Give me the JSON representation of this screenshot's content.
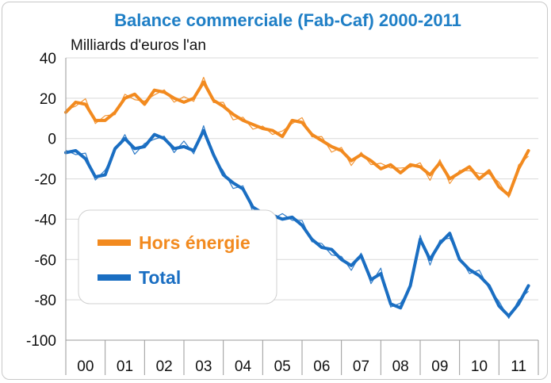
{
  "chart_data": {
    "type": "line",
    "title": "Balance commerciale (Fab-Caf) 2000-2011",
    "unit_label": "Milliards d'euros l'an",
    "x_tick_labels": [
      "00",
      "01",
      "02",
      "03",
      "04",
      "05",
      "06",
      "07",
      "08",
      "09",
      "10",
      "11"
    ],
    "y_ticks": [
      40,
      20,
      0,
      -20,
      -40,
      -60,
      -80,
      -100
    ],
    "ylim": [
      -100,
      40
    ],
    "xlim": [
      2000.0,
      2012.0
    ],
    "legend_position": "lower-left",
    "series": [
      {
        "name": "Hors énergie",
        "color": "#f28a1f",
        "x": [
          2000.0,
          2000.25,
          2000.5,
          2000.75,
          2001.0,
          2001.25,
          2001.5,
          2001.75,
          2002.0,
          2002.25,
          2002.5,
          2002.75,
          2003.0,
          2003.25,
          2003.5,
          2003.75,
          2004.0,
          2004.25,
          2004.5,
          2004.75,
          2005.0,
          2005.25,
          2005.5,
          2005.75,
          2006.0,
          2006.25,
          2006.5,
          2006.75,
          2007.0,
          2007.25,
          2007.5,
          2007.75,
          2008.0,
          2008.25,
          2008.5,
          2008.75,
          2009.0,
          2009.25,
          2009.5,
          2009.75,
          2010.0,
          2010.25,
          2010.5,
          2010.75,
          2011.0,
          2011.25,
          2011.5,
          2011.75
        ],
        "values": [
          13,
          18,
          17,
          9,
          9,
          13,
          20,
          22,
          17,
          24,
          23,
          20,
          18,
          20,
          28,
          19,
          16,
          12,
          9,
          7,
          5,
          4,
          1,
          9,
          8,
          2,
          -1,
          -4,
          -6,
          -11,
          -8,
          -11,
          -15,
          -13,
          -17,
          -13,
          -14,
          -18,
          -12,
          -20,
          -17,
          -14,
          -20,
          -16,
          -24,
          -28,
          -15,
          -6
        ]
      },
      {
        "name": "Total",
        "color": "#1a6ec2",
        "x": [
          2000.0,
          2000.25,
          2000.5,
          2000.75,
          2001.0,
          2001.25,
          2001.5,
          2001.75,
          2002.0,
          2002.25,
          2002.5,
          2002.75,
          2003.0,
          2003.25,
          2003.5,
          2003.75,
          2004.0,
          2004.25,
          2004.5,
          2004.75,
          2005.0,
          2005.25,
          2005.5,
          2005.75,
          2006.0,
          2006.25,
          2006.5,
          2006.75,
          2007.0,
          2007.25,
          2007.5,
          2007.75,
          2008.0,
          2008.25,
          2008.5,
          2008.75,
          2009.0,
          2009.25,
          2009.5,
          2009.75,
          2010.0,
          2010.25,
          2010.5,
          2010.75,
          2011.0,
          2011.25,
          2011.5,
          2011.75
        ],
        "values": [
          -7,
          -6,
          -10,
          -19,
          -18,
          -5,
          0,
          -5,
          -4,
          2,
          0,
          -5,
          -4,
          -6,
          4,
          -8,
          -18,
          -22,
          -25,
          -34,
          -37,
          -38,
          -40,
          -39,
          -43,
          -50,
          -54,
          -55,
          -60,
          -63,
          -58,
          -70,
          -67,
          -82,
          -84,
          -73,
          -50,
          -60,
          -52,
          -47,
          -60,
          -65,
          -68,
          -73,
          -83,
          -88,
          -82,
          -73
        ]
      }
    ]
  }
}
